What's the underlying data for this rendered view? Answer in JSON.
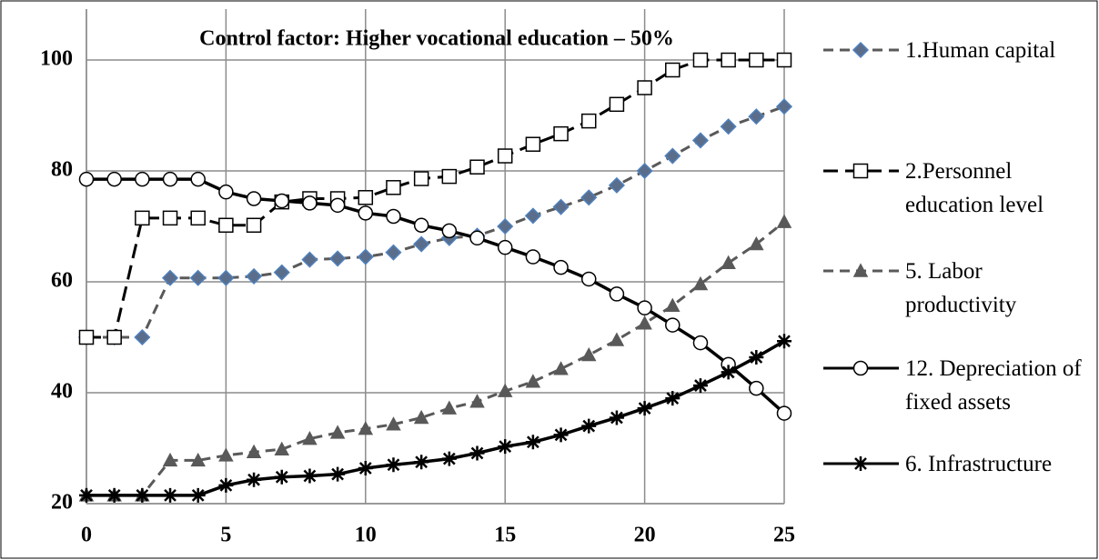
{
  "chart_data": {
    "type": "line",
    "title": "Control factor: Higher vocational education – 50%",
    "x": [
      0,
      1,
      2,
      3,
      4,
      5,
      6,
      7,
      8,
      9,
      10,
      11,
      12,
      13,
      14,
      15,
      16,
      17,
      18,
      19,
      20,
      21,
      22,
      23,
      24,
      25
    ],
    "xlim": [
      0,
      25
    ],
    "xticks": [
      0,
      5,
      10,
      15,
      20,
      25
    ],
    "ylim": [
      20,
      100
    ],
    "yticks": [
      20,
      40,
      60,
      80,
      100
    ],
    "grid": true,
    "legend": "right",
    "series": [
      {
        "name": "1.Human capital",
        "color": "#595959",
        "marker": "diamond",
        "marker_color": "#5a6e8c",
        "dash": true,
        "values": [
          50,
          50,
          50,
          60.7,
          60.7,
          60.7,
          61,
          61.7,
          64,
          64.2,
          64.5,
          65.3,
          66.8,
          67.9,
          68.3,
          70,
          71.9,
          73.5,
          75.2,
          77.4,
          80,
          82.7,
          85.5,
          88,
          89.8,
          91.6
        ]
      },
      {
        "name": "2.Personnel education level",
        "color": "#000000",
        "marker": "square",
        "marker_color": "#ffffff",
        "dash": true,
        "values": [
          50,
          50,
          71.5,
          71.5,
          71.5,
          70.2,
          70.2,
          74.4,
          75,
          75,
          75.2,
          77,
          78.6,
          79,
          80.7,
          82.7,
          84.8,
          86.7,
          89,
          92,
          95,
          98.2,
          100,
          100,
          100,
          100
        ]
      },
      {
        "name": "5. Labor productivity",
        "color": "#595959",
        "marker": "triangle",
        "marker_color": "#595959",
        "dash": true,
        "values": [
          21.5,
          21.5,
          21.5,
          27.8,
          27.8,
          28.7,
          29.3,
          29.8,
          31.7,
          32.8,
          33.5,
          34.3,
          35.5,
          37.2,
          38.4,
          40.3,
          42,
          44.3,
          46.8,
          49.5,
          52.5,
          55.7,
          59.6,
          63.4,
          66.8,
          70.8
        ]
      },
      {
        "name": "12. Depreciation of fixed assets",
        "color": "#000000",
        "marker": "circle",
        "marker_color": "#ffffff",
        "dash": false,
        "values": [
          78.5,
          78.5,
          78.5,
          78.5,
          78.5,
          76.2,
          75,
          74.6,
          74.2,
          73.8,
          72.4,
          71.8,
          70.2,
          69.2,
          67.9,
          66.2,
          64.5,
          62.6,
          60.5,
          57.8,
          55.3,
          52.2,
          49,
          45.1,
          40.8,
          36.3
        ]
      },
      {
        "name": "6. Infrastructure",
        "color": "#000000",
        "marker": "star",
        "marker_color": "#000000",
        "dash": false,
        "values": [
          21.5,
          21.5,
          21.5,
          21.5,
          21.5,
          23.3,
          24.3,
          24.8,
          25,
          25.3,
          26.4,
          27,
          27.5,
          28.1,
          29.1,
          30.3,
          31.1,
          32.4,
          34,
          35.5,
          37.2,
          39,
          41.3,
          43.7,
          46.4,
          49.3
        ]
      }
    ]
  }
}
